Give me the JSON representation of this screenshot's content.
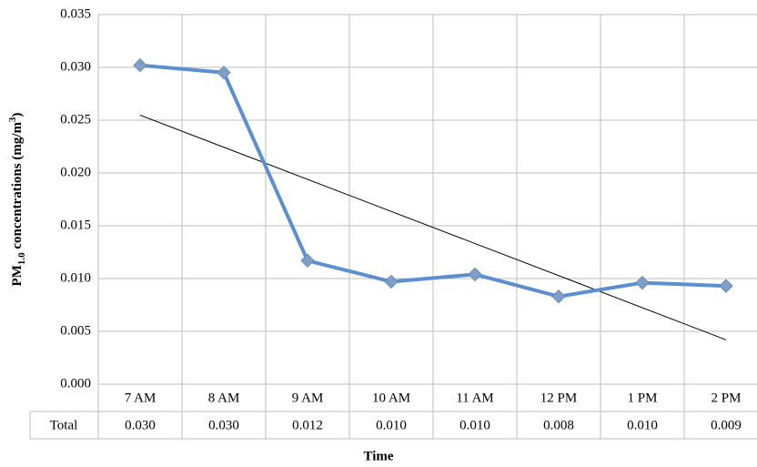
{
  "chart_data": {
    "type": "line",
    "x_label": "Time",
    "y_label_parts": [
      "PM",
      "1.0",
      " concentrations (mg/m",
      "3",
      ")"
    ],
    "categories": [
      "7 AM",
      "8 AM",
      "9 AM",
      "10 AM",
      "11 AM",
      "12 PM",
      "1 PM",
      "2 PM"
    ],
    "series": [
      {
        "name": "Total",
        "color": "#5b8fd0",
        "values": [
          0.0302,
          0.0295,
          0.0117,
          0.0097,
          0.0104,
          0.0083,
          0.0096,
          0.0093
        ],
        "value_labels": [
          "0.030",
          "0.030",
          "0.012",
          "0.010",
          "0.010",
          "0.008",
          "0.010",
          "0.009"
        ]
      }
    ],
    "ylim": [
      0,
      0.035
    ],
    "yticks": [
      {
        "value": 0,
        "label": "0.000"
      },
      {
        "value": 0.005,
        "label": "0.005"
      },
      {
        "value": 0.01,
        "label": "0.010"
      },
      {
        "value": 0.015,
        "label": "0.015"
      },
      {
        "value": 0.02,
        "label": "0.020"
      },
      {
        "value": 0.025,
        "label": "0.025"
      },
      {
        "value": 0.03,
        "label": "0.030"
      },
      {
        "value": 0.035,
        "label": "0.035"
      }
    ],
    "grid": true,
    "trendline": "linear",
    "data_table": true
  }
}
